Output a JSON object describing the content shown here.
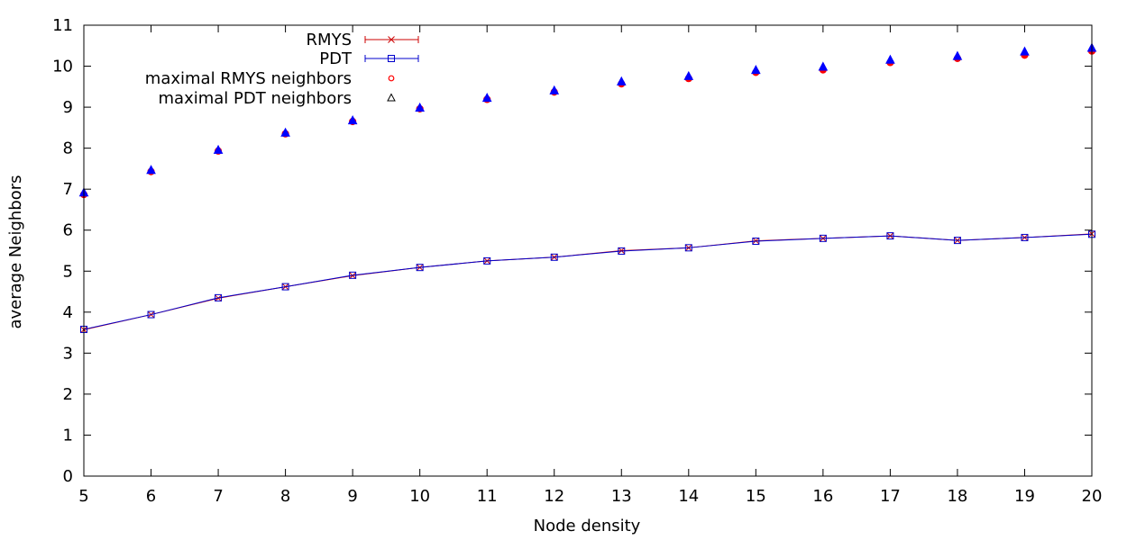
{
  "chart_data": {
    "type": "line",
    "xlabel": "Node density",
    "ylabel": "average Neighbors",
    "xlim": [
      5,
      20
    ],
    "ylim": [
      0,
      11
    ],
    "x_ticks": [
      5,
      6,
      7,
      8,
      9,
      10,
      11,
      12,
      13,
      14,
      15,
      16,
      17,
      18,
      19,
      20
    ],
    "y_ticks": [
      0,
      1,
      2,
      3,
      4,
      5,
      6,
      7,
      8,
      9,
      10,
      11
    ],
    "grid": false,
    "legend_position": "top-left",
    "x": [
      5,
      6,
      7,
      8,
      9,
      10,
      11,
      12,
      13,
      14,
      15,
      16,
      17,
      18,
      19,
      20
    ],
    "series": [
      {
        "name": "RMYS",
        "style": "line-with-errorbars",
        "marker": "x",
        "color": "#cc0000",
        "values": [
          3.57,
          3.94,
          4.34,
          4.62,
          4.89,
          5.09,
          5.25,
          5.34,
          5.5,
          5.57,
          5.74,
          5.8,
          5.86,
          5.75,
          5.82,
          5.91
        ]
      },
      {
        "name": "PDT",
        "style": "line-with-errorbars",
        "marker": "square",
        "color": "#0000cc",
        "values": [
          3.58,
          3.94,
          4.35,
          4.62,
          4.9,
          5.09,
          5.25,
          5.34,
          5.49,
          5.57,
          5.73,
          5.8,
          5.86,
          5.75,
          5.82,
          5.9
        ]
      },
      {
        "name": "maximal RMYS neighbors",
        "style": "points",
        "marker": "circle",
        "color": "#ff0000",
        "values": [
          6.87,
          7.43,
          7.93,
          8.35,
          8.65,
          8.96,
          9.19,
          9.37,
          9.57,
          9.7,
          9.85,
          9.91,
          10.09,
          10.19,
          10.27,
          10.37
        ]
      },
      {
        "name": "maximal PDT neighbors",
        "style": "points",
        "marker": "triangle",
        "color": "#0000ff",
        "values": [
          6.91,
          7.46,
          7.95,
          8.37,
          8.67,
          8.98,
          9.22,
          9.4,
          9.62,
          9.75,
          9.9,
          9.98,
          10.15,
          10.24,
          10.35,
          10.44
        ]
      }
    ]
  }
}
